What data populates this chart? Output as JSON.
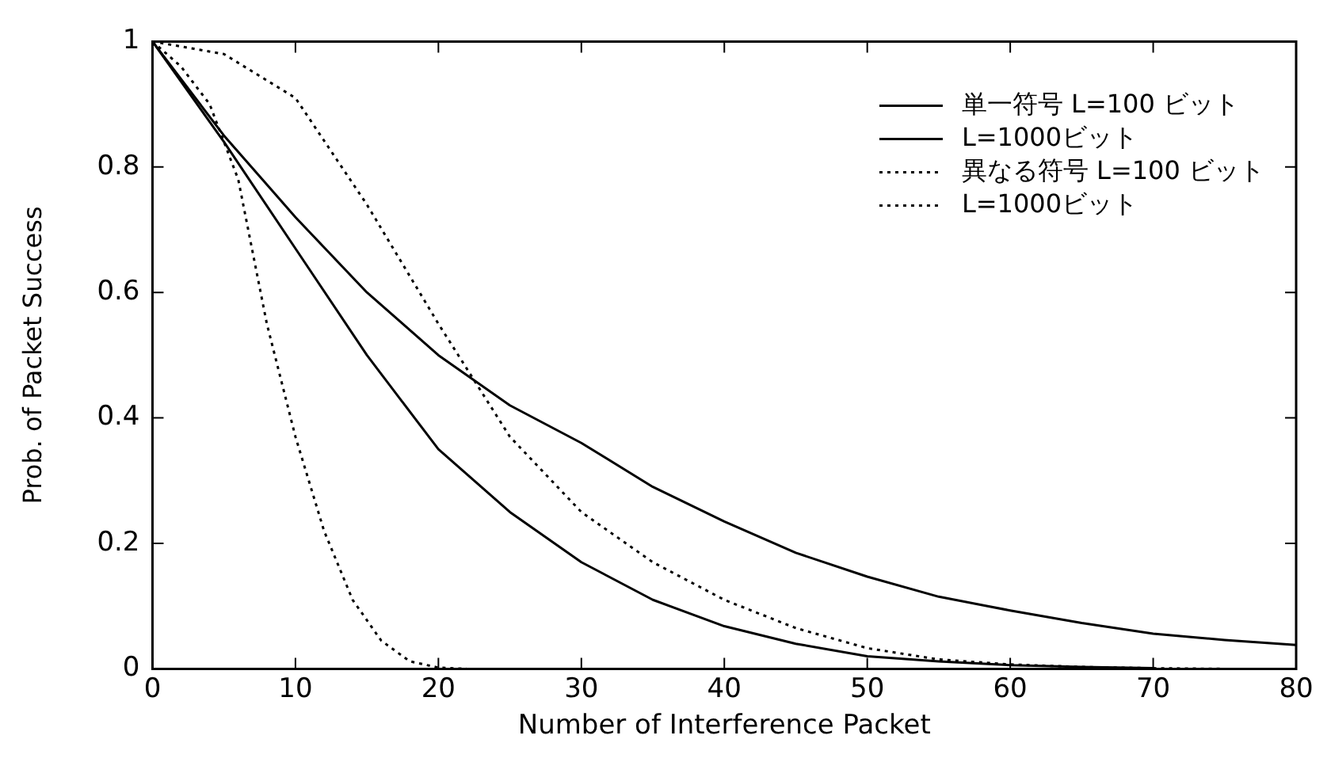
{
  "chart_data": {
    "type": "line",
    "xlabel": "Number of Interference Packet",
    "ylabel": "Prob. of Packet Success",
    "xlim": [
      0,
      80
    ],
    "xticks": [
      0,
      10,
      20,
      30,
      40,
      50,
      60,
      70,
      80
    ],
    "ylim": [
      0,
      1
    ],
    "yticks": [
      0,
      0.2,
      0.4,
      0.6,
      0.8,
      1
    ],
    "grid": false,
    "legend": "top right",
    "marker": "none",
    "series": [
      {
        "name": "単一符号 L=100 ビット",
        "color": "#000000",
        "line_style": "solid",
        "x": [
          0,
          5,
          10,
          15,
          20,
          25,
          30,
          35,
          40,
          45,
          50,
          55,
          60,
          65,
          70,
          75,
          80
        ],
        "values": [
          1,
          0.85,
          0.72,
          0.6,
          0.5,
          0.42,
          0.36,
          0.29,
          0.235,
          0.185,
          0.147,
          0.115,
          0.093,
          0.073,
          0.056,
          0.046,
          0.038
        ]
      },
      {
        "name": "L=1000ビット",
        "color": "#000000",
        "line_style": "solid",
        "x": [
          0,
          5,
          10,
          15,
          20,
          25,
          30,
          35,
          40,
          45,
          50,
          55,
          60,
          65,
          70
        ],
        "values": [
          1,
          0.84,
          0.67,
          0.5,
          0.35,
          0.25,
          0.17,
          0.11,
          0.068,
          0.04,
          0.02,
          0.012,
          0.006,
          0.003,
          0.001
        ]
      },
      {
        "name": "異なる符号 L=100 ビット",
        "color": "#000000",
        "line_style": "dotted",
        "x": [
          0,
          5,
          10,
          15,
          20,
          25,
          30,
          35,
          40,
          45,
          50,
          55,
          60,
          65,
          70,
          75,
          80
        ],
        "values": [
          1,
          0.98,
          0.91,
          0.74,
          0.55,
          0.37,
          0.25,
          0.17,
          0.11,
          0.065,
          0.033,
          0.015,
          0.007,
          0.003,
          0.001,
          0,
          0
        ]
      },
      {
        "name": "L=1000ビット",
        "color": "#000000",
        "line_style": "dotted",
        "x": [
          0,
          2,
          4,
          6,
          8,
          10,
          12,
          14,
          16,
          18,
          20,
          22
        ],
        "values": [
          1,
          0.96,
          0.9,
          0.78,
          0.55,
          0.37,
          0.22,
          0.11,
          0.045,
          0.012,
          0.002,
          0
        ]
      }
    ]
  }
}
